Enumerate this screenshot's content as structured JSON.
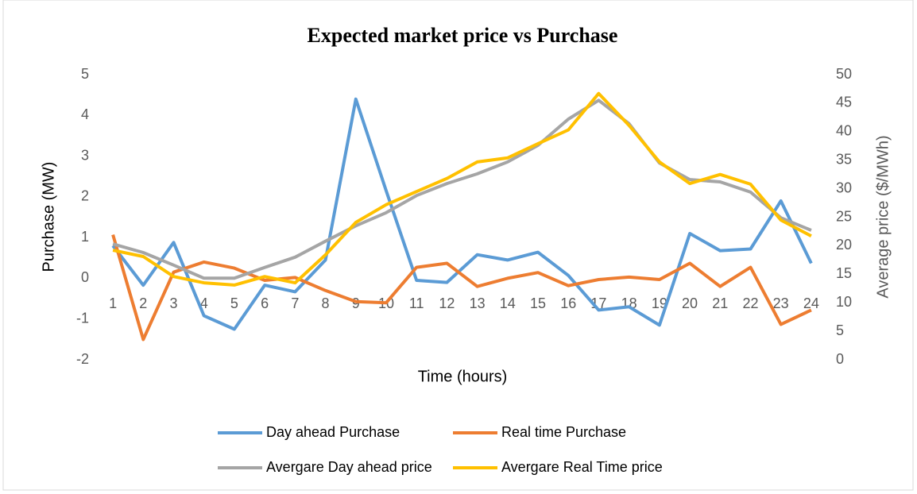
{
  "chart_data": {
    "type": "line",
    "title": "Expected market price vs Purchase",
    "x_label": "Time (hours)",
    "y_label": "Purchase (MW)",
    "y2_label": "Average price ($/MWh)",
    "categories": [
      "1",
      "2",
      "3",
      "4",
      "5",
      "6",
      "7",
      "8",
      "9",
      "10",
      "11",
      "12",
      "13",
      "14",
      "15",
      "16",
      "17",
      "18",
      "19",
      "20",
      "21",
      "22",
      "23",
      "24"
    ],
    "ylim": [
      -2,
      5
    ],
    "yticks": [
      -2,
      -1,
      0,
      1,
      2,
      3,
      4,
      5
    ],
    "y2lim": [
      0,
      50
    ],
    "y2ticks": [
      0,
      5,
      10,
      15,
      20,
      25,
      30,
      35,
      40,
      45,
      50
    ],
    "grid": false,
    "legend": "bottom",
    "series": [
      {
        "name": "Day ahead Purchase",
        "color": "#5b9bd5",
        "values": [
          0.8,
          -0.17,
          0.88,
          -0.92,
          -1.25,
          -0.17,
          -0.33,
          0.45,
          4.4,
          2.15,
          -0.05,
          -0.1,
          0.58,
          0.45,
          0.64,
          0.07,
          -0.78,
          -0.7,
          -1.15,
          1.1,
          0.68,
          0.72,
          1.9,
          0.37
        ]
      },
      {
        "name": "Real time Purchase",
        "color": "#ed7d31",
        "values": [
          1.07,
          -1.5,
          0.15,
          0.4,
          0.25,
          -0.05,
          0.02,
          -0.3,
          -0.57,
          -0.6,
          0.27,
          0.37,
          -0.2,
          0.0,
          0.14,
          -0.18,
          -0.03,
          0.03,
          -0.03,
          0.37,
          -0.2,
          0.27,
          -1.13,
          -0.78
        ]
      },
      {
        "name": "Avergare Day ahead price",
        "color": "#a5a5a5",
        "axis": "y2",
        "values": [
          20.3,
          18.8,
          16.6,
          14.3,
          14.3,
          16.2,
          18,
          20.8,
          23.5,
          25.8,
          28.8,
          30.9,
          32.6,
          34.7,
          37.6,
          42.2,
          45.5,
          41.4,
          34.5,
          31.6,
          31.2,
          29.4,
          24.9,
          22.7
        ]
      },
      {
        "name": "Avergare Real Time price",
        "color": "#ffc000",
        "axis": "y2",
        "values": [
          19.2,
          18.1,
          14.6,
          13.5,
          13.1,
          14.6,
          13.5,
          18.4,
          24.1,
          27.2,
          29.5,
          31.8,
          34.7,
          35.4,
          37.9,
          40.3,
          46.7,
          41.1,
          34.7,
          30.9,
          32.5,
          30.8,
          24.5,
          21.7
        ]
      }
    ]
  }
}
